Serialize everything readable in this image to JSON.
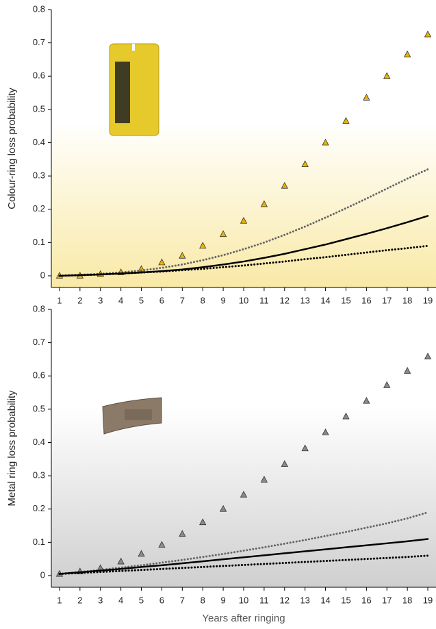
{
  "chart_data": [
    {
      "type": "line",
      "y_label": "Colour-ring loss probability",
      "x": [
        1,
        2,
        3,
        4,
        5,
        6,
        7,
        8,
        9,
        10,
        11,
        12,
        13,
        14,
        15,
        16,
        17,
        18,
        19
      ],
      "xlim": [
        0.6,
        19.4
      ],
      "xticks": [
        1,
        2,
        3,
        4,
        5,
        6,
        7,
        8,
        9,
        10,
        11,
        12,
        13,
        14,
        15,
        16,
        17,
        18,
        19
      ],
      "ylim": [
        -0.035,
        0.8
      ],
      "yticks": [
        0,
        0.1,
        0.2,
        0.3,
        0.4,
        0.5,
        0.6,
        0.7,
        0.8
      ],
      "background": "#f9e9a6",
      "series": [
        {
          "style": "triangle",
          "color": "#e8b400",
          "values": [
            0,
            0,
            0.005,
            0.01,
            0.02,
            0.04,
            0.06,
            0.09,
            0.125,
            0.165,
            0.215,
            0.27,
            0.335,
            0.4,
            0.465,
            0.535,
            0.6,
            0.665,
            0.725
          ]
        },
        {
          "style": "dotted",
          "color": "#666666",
          "values": [
            0,
            0.003,
            0.006,
            0.01,
            0.016,
            0.024,
            0.034,
            0.047,
            0.062,
            0.08,
            0.1,
            0.123,
            0.148,
            0.175,
            0.203,
            0.232,
            0.262,
            0.292,
            0.32
          ]
        },
        {
          "style": "solid",
          "color": "#000000",
          "values": [
            0,
            0.002,
            0.004,
            0.007,
            0.01,
            0.014,
            0.019,
            0.026,
            0.034,
            0.043,
            0.054,
            0.066,
            0.08,
            0.094,
            0.11,
            0.126,
            0.143,
            0.161,
            0.18
          ]
        },
        {
          "style": "dotted",
          "color": "#000000",
          "values": [
            0,
            0.002,
            0.004,
            0.007,
            0.01,
            0.013,
            0.017,
            0.021,
            0.026,
            0.031,
            0.037,
            0.043,
            0.05,
            0.056,
            0.063,
            0.07,
            0.077,
            0.083,
            0.09
          ]
        }
      ]
    },
    {
      "type": "line",
      "y_label": "Metal ring loss probability",
      "x_label": "Years after ringing",
      "x": [
        1,
        2,
        3,
        4,
        5,
        6,
        7,
        8,
        9,
        10,
        11,
        12,
        13,
        14,
        15,
        16,
        17,
        18,
        19
      ],
      "xlim": [
        0.6,
        19.4
      ],
      "xticks": [
        1,
        2,
        3,
        4,
        5,
        6,
        7,
        8,
        9,
        10,
        11,
        12,
        13,
        14,
        15,
        16,
        17,
        18,
        19
      ],
      "ylim": [
        -0.035,
        0.8
      ],
      "yticks": [
        0,
        0.1,
        0.2,
        0.3,
        0.4,
        0.5,
        0.6,
        0.7,
        0.8
      ],
      "background": "#cfcfcf",
      "series": [
        {
          "style": "triangle",
          "color": "#8a8a8a",
          "values": [
            0.005,
            0.012,
            0.022,
            0.042,
            0.065,
            0.092,
            0.125,
            0.16,
            0.2,
            0.243,
            0.288,
            0.335,
            0.382,
            0.43,
            0.478,
            0.525,
            0.572,
            0.615,
            0.658
          ]
        },
        {
          "style": "dotted",
          "color": "#666666",
          "values": [
            0.005,
            0.011,
            0.017,
            0.024,
            0.031,
            0.039,
            0.047,
            0.056,
            0.065,
            0.075,
            0.085,
            0.096,
            0.107,
            0.119,
            0.131,
            0.144,
            0.157,
            0.172,
            0.19
          ]
        },
        {
          "style": "solid",
          "color": "#000000",
          "values": [
            0.005,
            0.01,
            0.015,
            0.02,
            0.026,
            0.031,
            0.037,
            0.043,
            0.049,
            0.055,
            0.061,
            0.067,
            0.073,
            0.079,
            0.085,
            0.091,
            0.097,
            0.103,
            0.11
          ]
        },
        {
          "style": "dotted",
          "color": "#000000",
          "values": [
            0.005,
            0.008,
            0.011,
            0.014,
            0.017,
            0.02,
            0.023,
            0.026,
            0.029,
            0.032,
            0.035,
            0.038,
            0.041,
            0.044,
            0.047,
            0.05,
            0.053,
            0.056,
            0.06
          ]
        }
      ]
    }
  ]
}
